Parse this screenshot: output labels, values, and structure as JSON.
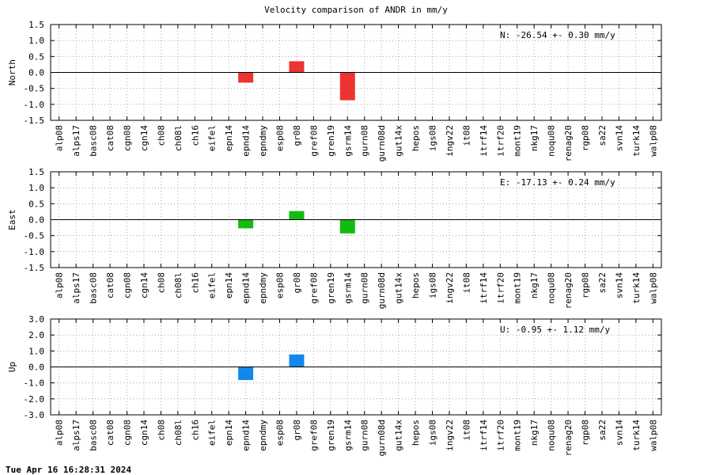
{
  "chart_data": {
    "type": "bar",
    "title": "Velocity comparison of ANDR in mm/y",
    "categories": [
      "alp08",
      "alps17",
      "basc08",
      "cat08",
      "cgn08",
      "cgn14",
      "ch08",
      "ch08l",
      "ch16",
      "eifel",
      "epn14",
      "epnd14",
      "epndmy",
      "esp08",
      "gr08",
      "gref08",
      "gren19",
      "gsrm14",
      "gurn08",
      "gurn08d",
      "gut14x",
      "hepos",
      "igs08",
      "ingv22",
      "it08",
      "itrf14",
      "itrf20",
      "mont19",
      "nkg17",
      "noqu08",
      "renag20",
      "rgp08",
      "sa22",
      "svn14",
      "turk14",
      "walp08"
    ],
    "grid": true,
    "panels": [
      {
        "ylabel": "North",
        "ylim": [
          -1.5,
          1.5
        ],
        "yticks": [
          "1.5",
          "1.0",
          "0.5",
          "0.0",
          "-0.5",
          "-1.0",
          "-1.5"
        ],
        "annotation": "N: -26.54 +-  0.30 mm/y",
        "color": "#ee3333",
        "values": {
          "epnd14": -0.32,
          "gr08": 0.35,
          "gsrm14": -0.87
        }
      },
      {
        "ylabel": "East",
        "ylim": [
          -1.5,
          1.5
        ],
        "yticks": [
          "1.5",
          "1.0",
          "0.5",
          "0.0",
          "-0.5",
          "-1.0",
          "-1.5"
        ],
        "annotation": "E: -17.13 +-  0.24 mm/y",
        "color": "#11bb11",
        "values": {
          "epnd14": -0.27,
          "gr08": 0.27,
          "gsrm14": -0.43
        }
      },
      {
        "ylabel": "Up",
        "ylim": [
          -3.0,
          3.0
        ],
        "yticks": [
          "3.0",
          "2.0",
          "1.0",
          "0.0",
          "-1.0",
          "-2.0",
          "-3.0"
        ],
        "annotation": "U:  -0.95 +-  1.12 mm/y",
        "color": "#1188ee",
        "values": {
          "epnd14": -0.82,
          "gr08": 0.78
        }
      }
    ]
  },
  "timestamp": "Tue Apr 16 16:28:31 2024"
}
